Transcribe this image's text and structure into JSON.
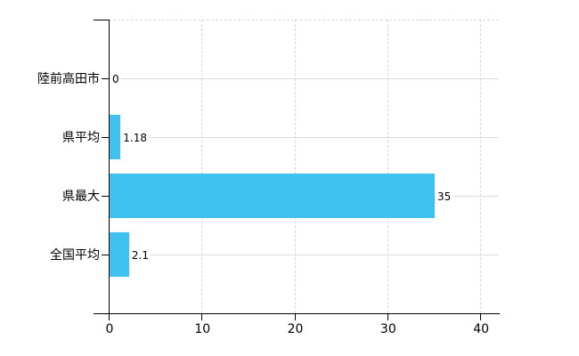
{
  "chart_data": {
    "type": "bar",
    "orientation": "horizontal",
    "title": "",
    "categories": [
      "陸前高田市",
      "県平均",
      "県最大",
      "全国平均"
    ],
    "values": [
      0,
      1.18,
      35,
      2.1
    ],
    "value_labels": [
      "0",
      "1.18",
      "35",
      "2.1"
    ],
    "x_tick_labels": [
      "0",
      "10",
      "20",
      "30",
      "40"
    ],
    "x_tick_values": [
      0,
      10,
      20,
      30,
      40
    ],
    "xlim": [
      0,
      42
    ],
    "grid": true,
    "legend": "none",
    "bar_color": "#3fc2ef",
    "h_gridline_color": "#d4e0d4",
    "v_gridline_color": "#d6d6de",
    "axis_color": "#000000",
    "text_color": "#000000",
    "background_color": "#ffffff"
  }
}
